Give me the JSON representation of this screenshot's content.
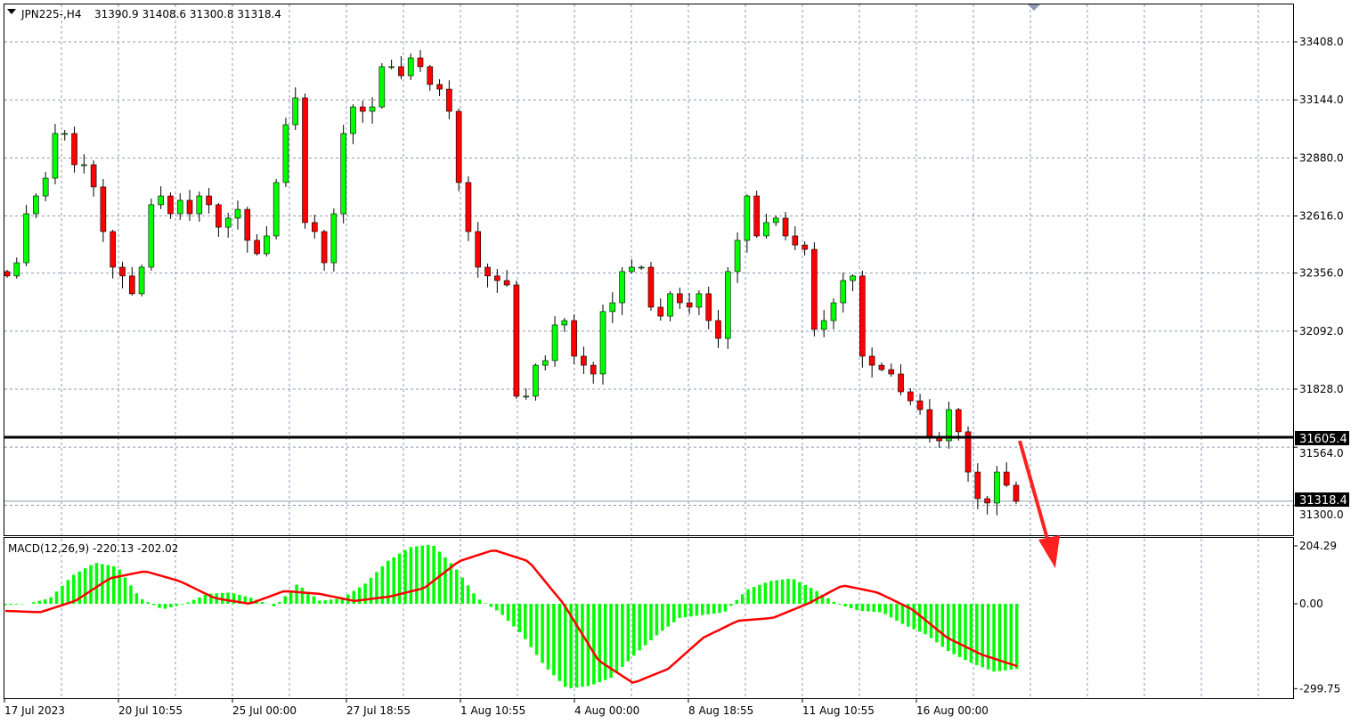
{
  "header": {
    "symbol": "JPN225-,H4",
    "ohlc": "31390.9 31408.6 31300.8 31318.4"
  },
  "macd": {
    "label": "MACD(12,26,9) -220.13 -202.02",
    "axis_ticks": [
      204.29,
      0.0,
      -299.75
    ],
    "axis_labels": [
      "204.29",
      "0.00",
      "-299.75"
    ]
  },
  "price_axis": {
    "labels": [
      "33408.0",
      "33144.0",
      "32880.0",
      "32616.0",
      "32356.0",
      "32092.0",
      "31828.0",
      "31564.0",
      "31300.0"
    ],
    "values": [
      33408,
      33144,
      32880,
      32616,
      32356,
      32092,
      31828,
      31564,
      31300
    ]
  },
  "time_axis": {
    "labels": [
      "17 Jul 2023",
      "20 Jul 10:55",
      "25 Jul 00:00",
      "27 Jul 18:55",
      "1 Aug 10:55",
      "4 Aug 00:00",
      "8 Aug 18:55",
      "11 Aug 10:55",
      "16 Aug 00:00"
    ]
  },
  "horizontal_line": {
    "price": 31605.4,
    "label": "31605.4"
  },
  "bid_line": {
    "price": 31318.4,
    "label": "31318.4"
  },
  "colors": {
    "bull": "#00ff00",
    "bear": "#ff0000",
    "macd_hist": "#00ff00",
    "signal": "#ff0000",
    "arrow": "#ff2020",
    "grid": "#8c9bb0"
  },
  "annotation": {
    "type": "down-arrow",
    "color": "#ff2020"
  },
  "closes": [
    32343,
    32403,
    32626,
    32707,
    32788,
    32991,
    32991,
    32849,
    32849,
    32748,
    32545,
    32383,
    32343,
    32262,
    32383,
    32667,
    32707,
    32626,
    32687,
    32626,
    32707,
    32667,
    32565,
    32606,
    32646,
    32505,
    32444,
    32525,
    32768,
    33031,
    33153,
    32586,
    32545,
    32403,
    32626,
    32991,
    33112,
    33092,
    33112,
    33295,
    33295,
    33254,
    33335,
    33295,
    33214,
    33193,
    33092,
    32768,
    32545,
    32383,
    32343,
    32322,
    32302,
    31796,
    31796,
    31937,
    31958,
    32120,
    32140,
    31978,
    31937,
    31897,
    32181,
    32221,
    32363,
    32383,
    32383,
    32201,
    32160,
    32262,
    32221,
    32201,
    32262,
    32140,
    32059,
    32363,
    32505,
    32707,
    32525,
    32586,
    32606,
    32525,
    32484,
    32464,
    32100,
    32140,
    32221,
    32322,
    32343,
    31978,
    31937,
    31917,
    31897,
    31816,
    31775,
    31735,
    31613,
    31593,
    31735,
    31634,
    31451,
    31330,
    31310,
    31451,
    31391,
    31318
  ],
  "macd_hist": [
    -5,
    0,
    20,
    100,
    145,
    130,
    20,
    -20,
    0,
    35,
    40,
    20,
    -10,
    70,
    10,
    20,
    70,
    150,
    200,
    210,
    130,
    20,
    -30,
    -110,
    -220,
    -300,
    -290,
    -260,
    -180,
    -110,
    -50,
    -40,
    -30,
    50,
    80,
    90,
    50,
    0,
    -25,
    -30,
    -75,
    -110,
    -170,
    -210,
    -240,
    -230
  ],
  "macd_signal": [
    -25,
    -30,
    10,
    90,
    115,
    80,
    20,
    0,
    45,
    35,
    10,
    25,
    55,
    150,
    190,
    150,
    0,
    -200,
    -280,
    -230,
    -120,
    -60,
    -50,
    0,
    65,
    40,
    -20,
    -120,
    -180,
    -220
  ]
}
